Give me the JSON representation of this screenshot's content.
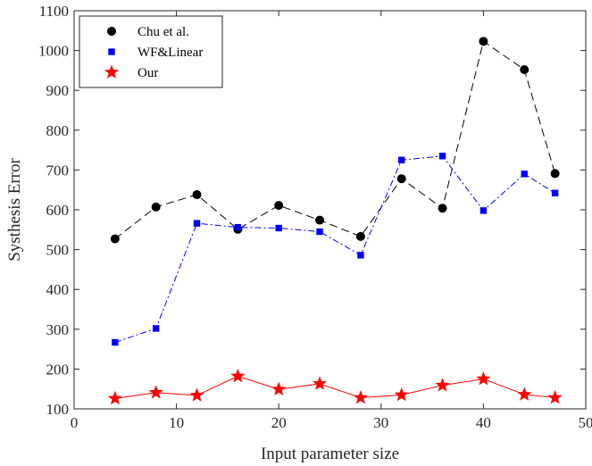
{
  "chart_data": {
    "type": "line",
    "title": "",
    "xlabel": "Input parameter size",
    "ylabel": "Systhesis Error",
    "xlim": [
      0,
      50
    ],
    "ylim": [
      100,
      1100
    ],
    "xticks": [
      0,
      10,
      20,
      30,
      40,
      50
    ],
    "yticks": [
      100,
      200,
      300,
      400,
      500,
      600,
      700,
      800,
      900,
      1000,
      1100
    ],
    "grid": false,
    "legend_position": "top-left",
    "x": [
      4,
      8,
      12,
      16,
      20,
      24,
      28,
      32,
      36,
      40,
      44,
      47
    ],
    "series": [
      {
        "name": "Chu et al.",
        "color": "#000000",
        "line_style": "dashed",
        "marker": "circle",
        "values": [
          527,
          607,
          638,
          551,
          611,
          574,
          533,
          678,
          604,
          1023,
          952,
          691
        ]
      },
      {
        "name": "WF&Linear",
        "color": "#0000ff",
        "line_style": "dash-dot",
        "marker": "square",
        "values": [
          267,
          302,
          566,
          556,
          554,
          545,
          486,
          725,
          735,
          598,
          690,
          642
        ]
      },
      {
        "name": "Our",
        "color": "#ff0000",
        "line_style": "solid",
        "marker": "star",
        "values": [
          126,
          141,
          134,
          182,
          149,
          163,
          128,
          135,
          159,
          175,
          136,
          128
        ]
      }
    ]
  }
}
